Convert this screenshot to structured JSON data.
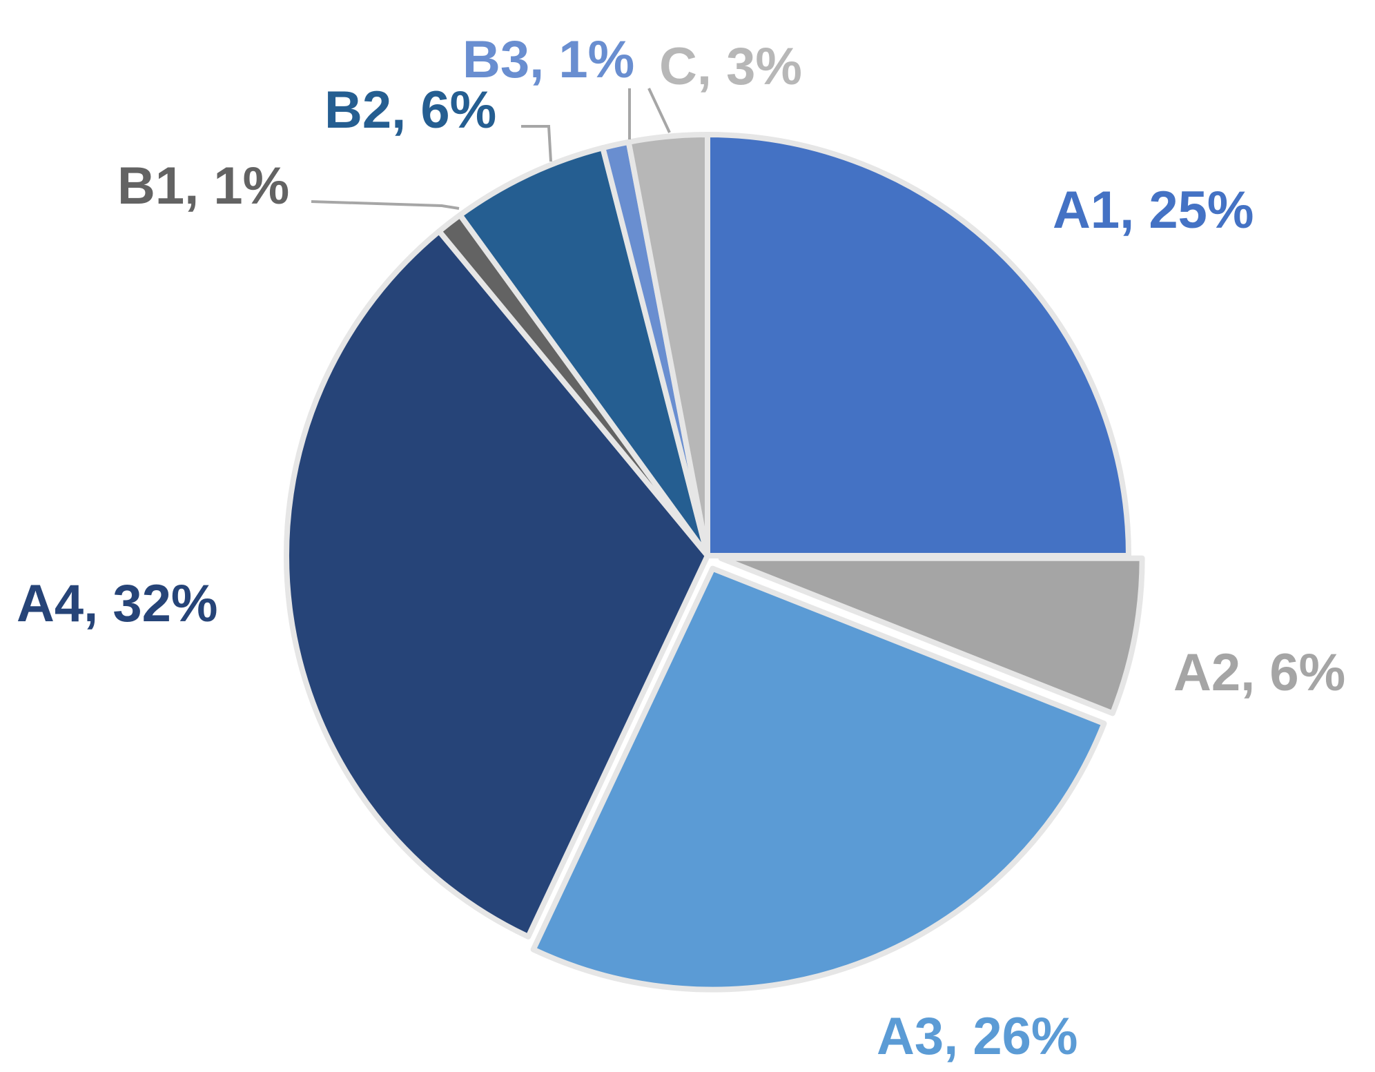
{
  "chart_data": {
    "type": "pie",
    "title": "",
    "start_angle_deg": 0,
    "direction": "clockwise",
    "slices": [
      {
        "label": "A1",
        "value": 25,
        "display": "A1, 25%",
        "color": "#4472C4",
        "label_color": "#4472C4",
        "explode": false
      },
      {
        "label": "A2",
        "value": 6,
        "display": "A2, 6%",
        "color": "#A5A5A5",
        "label_color": "#A5A5A5",
        "explode": true
      },
      {
        "label": "A3",
        "value": 26,
        "display": "A3, 26%",
        "color": "#5B9BD5",
        "label_color": "#5B9BD5",
        "explode": true
      },
      {
        "label": "A4",
        "value": 32,
        "display": "A4, 32%",
        "color": "#264478",
        "label_color": "#264478",
        "explode": false
      },
      {
        "label": "B1",
        "value": 1,
        "display": "B1, 1%",
        "color": "#636363",
        "label_color": "#636363",
        "explode": false
      },
      {
        "label": "B2",
        "value": 6,
        "display": "B2, 6%",
        "color": "#255E91",
        "label_color": "#255E91",
        "explode": false
      },
      {
        "label": "B3",
        "value": 1,
        "display": "B3, 1%",
        "color": "#698ED0",
        "label_color": "#698ED0",
        "explode": false
      },
      {
        "label": "C",
        "value": 3,
        "display": "C, 3%",
        "color": "#B7B7B7",
        "label_color": "#B7B7B7",
        "explode": false
      }
    ]
  }
}
